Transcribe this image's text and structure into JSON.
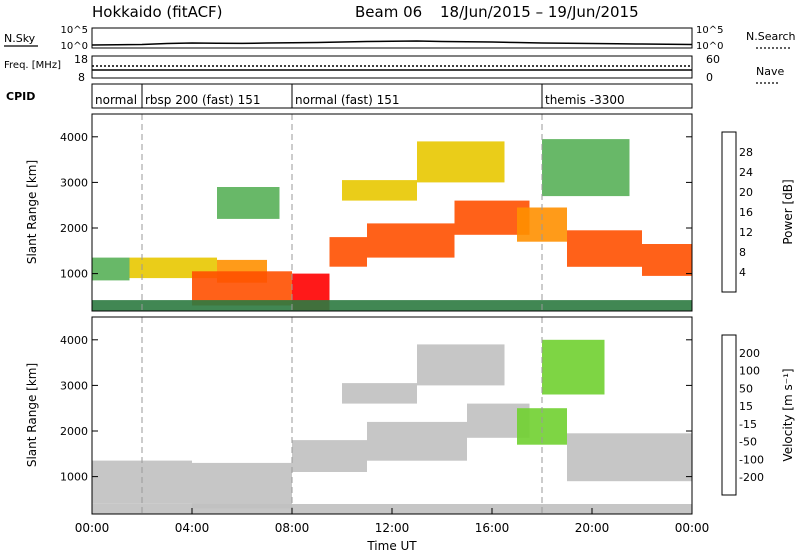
{
  "header": {
    "station": "Hokkaido (fitACF)",
    "beam": "Beam 06",
    "date_range": "18/Jun/2015 – 19/Jun/2015"
  },
  "chart_data": [
    {
      "type": "line",
      "name": "noise-panel",
      "left_label": "N.Sky",
      "right_label": "N.Search",
      "left_ticks": [
        "10^5",
        "10^0"
      ],
      "right_ticks": [
        "10^5",
        "10^0"
      ],
      "series": [
        {
          "name": "N.Sky",
          "x_hours": [
            0,
            1,
            2,
            3,
            4,
            5,
            6,
            7,
            8,
            9,
            10,
            11,
            12,
            13,
            14,
            15,
            16,
            17,
            18,
            19,
            20,
            21,
            22,
            23,
            24
          ],
          "level": [
            0.1,
            0.12,
            0.15,
            0.25,
            0.3,
            0.28,
            0.26,
            0.3,
            0.32,
            0.35,
            0.4,
            0.45,
            0.48,
            0.5,
            0.45,
            0.42,
            0.4,
            0.35,
            0.3,
            0.28,
            0.25,
            0.22,
            0.2,
            0.18,
            0.15
          ]
        }
      ]
    },
    {
      "type": "line",
      "name": "frequency-panel",
      "left_label": "Freq. [MHz]",
      "right_label": "Nave",
      "left_ticks": [
        "18",
        "8"
      ],
      "right_ticks": [
        "60",
        "0"
      ],
      "series": [
        {
          "name": "Freq.",
          "x_hours": [
            0,
            24
          ],
          "y": [
            10.5,
            10.5
          ]
        },
        {
          "name": "Nave",
          "x_hours": [
            0,
            24
          ],
          "y": [
            30,
            30
          ]
        }
      ]
    },
    {
      "type": "table",
      "name": "cpid-panel",
      "label": "CPID",
      "segments": [
        {
          "start_hour": 0,
          "text": "normal"
        },
        {
          "start_hour": 2,
          "text": "rbsp 200 (fast) 151"
        },
        {
          "start_hour": 8,
          "text": "normal (fast) 151"
        },
        {
          "start_hour": 18,
          "text": "themis -3300"
        }
      ]
    },
    {
      "type": "heatmap",
      "name": "power-panel",
      "ylabel": "Slant Range [km]",
      "ylim": [
        180,
        4500
      ],
      "yticks": [
        1000,
        2000,
        3000,
        4000
      ],
      "colorbar_label": "Power [dB]",
      "colorbar_ticks": [
        4,
        8,
        12,
        16,
        20,
        24,
        28
      ],
      "colorbar_colors": [
        "#0000ff",
        "#3030a0",
        "#2c7a40",
        "#58b058",
        "#e8c800",
        "#ff9000",
        "#ff5000",
        "#ff0000"
      ],
      "regions": [
        {
          "t0": 0.0,
          "t1": 1.5,
          "r0": 850,
          "r1": 1350,
          "value": 14
        },
        {
          "t0": 1.5,
          "t1": 5.0,
          "r0": 900,
          "r1": 1350,
          "value": 16
        },
        {
          "t0": 5.0,
          "t1": 7.0,
          "r0": 800,
          "r1": 1300,
          "value": 22
        },
        {
          "t0": 4.0,
          "t1": 8.0,
          "r0": 300,
          "r1": 1050,
          "value": 26
        },
        {
          "t0": 8.0,
          "t1": 9.5,
          "r0": 200,
          "r1": 1000,
          "value": 28
        },
        {
          "t0": 9.5,
          "t1": 11.0,
          "r0": 1150,
          "r1": 1800,
          "value": 26
        },
        {
          "t0": 11.0,
          "t1": 14.5,
          "r0": 1350,
          "r1": 2100,
          "value": 24
        },
        {
          "t0": 14.5,
          "t1": 17.5,
          "r0": 1850,
          "r1": 2600,
          "value": 26
        },
        {
          "t0": 17.0,
          "t1": 19.0,
          "r0": 1700,
          "r1": 2450,
          "value": 20
        },
        {
          "t0": 19.0,
          "t1": 22.0,
          "r0": 1150,
          "r1": 1950,
          "value": 26
        },
        {
          "t0": 22.0,
          "t1": 24.0,
          "r0": 950,
          "r1": 1650,
          "value": 24
        },
        {
          "t0": 10.0,
          "t1": 13.0,
          "r0": 2600,
          "r1": 3050,
          "value": 18
        },
        {
          "t0": 13.0,
          "t1": 16.5,
          "r0": 3000,
          "r1": 3900,
          "value": 18
        },
        {
          "t0": 18.0,
          "t1": 21.5,
          "r0": 2700,
          "r1": 3950,
          "value": 12
        },
        {
          "t0": 5.0,
          "t1": 7.5,
          "r0": 2200,
          "r1": 2900,
          "value": 14
        },
        {
          "t0": 0.0,
          "t1": 24.0,
          "r0": 180,
          "r1": 420,
          "value": 8
        }
      ]
    },
    {
      "type": "heatmap",
      "name": "velocity-panel",
      "ylabel": "Slant Range [km]",
      "ylim": [
        180,
        4500
      ],
      "yticks": [
        1000,
        2000,
        3000,
        4000
      ],
      "xlabel": "Time UT",
      "xticks": [
        "00:00",
        "04:00",
        "08:00",
        "12:00",
        "16:00",
        "20:00",
        "00:00"
      ],
      "colorbar_label": "Velocity [m s⁻¹]",
      "colorbar_ticks": [
        "200",
        "100",
        "50",
        "15",
        "-15",
        "-50",
        "-100",
        "-200"
      ],
      "colorbar_colors": [
        "#2020c0",
        "#2c7a40",
        "#58b058",
        "#70d030",
        "#c0c0c0",
        "#e8c800",
        "#ff9000",
        "#ff5000",
        "#ff0000"
      ],
      "regions": [
        {
          "t0": 0.0,
          "t1": 4.0,
          "r0": 400,
          "r1": 1350,
          "value": -5
        },
        {
          "t0": 4.0,
          "t1": 8.0,
          "r0": 300,
          "r1": 1300,
          "value": -5
        },
        {
          "t0": 8.0,
          "t1": 11.0,
          "r0": 1100,
          "r1": 1800,
          "value": -5
        },
        {
          "t0": 11.0,
          "t1": 15.0,
          "r0": 1350,
          "r1": 2200,
          "value": -5
        },
        {
          "t0": 15.0,
          "t1": 17.5,
          "r0": 1850,
          "r1": 2600,
          "value": -5
        },
        {
          "t0": 17.0,
          "t1": 19.0,
          "r0": 1700,
          "r1": 2500,
          "value": 40
        },
        {
          "t0": 19.0,
          "t1": 24.0,
          "r0": 900,
          "r1": 1950,
          "value": -5
        },
        {
          "t0": 10.0,
          "t1": 13.0,
          "r0": 2600,
          "r1": 3050,
          "value": -5
        },
        {
          "t0": 13.0,
          "t1": 16.5,
          "r0": 3000,
          "r1": 3900,
          "value": -5
        },
        {
          "t0": 18.0,
          "t1": 20.5,
          "r0": 2800,
          "r1": 4000,
          "value": 40
        },
        {
          "t0": 0.0,
          "t1": 24.0,
          "r0": 180,
          "r1": 400,
          "value": -5
        }
      ]
    }
  ]
}
